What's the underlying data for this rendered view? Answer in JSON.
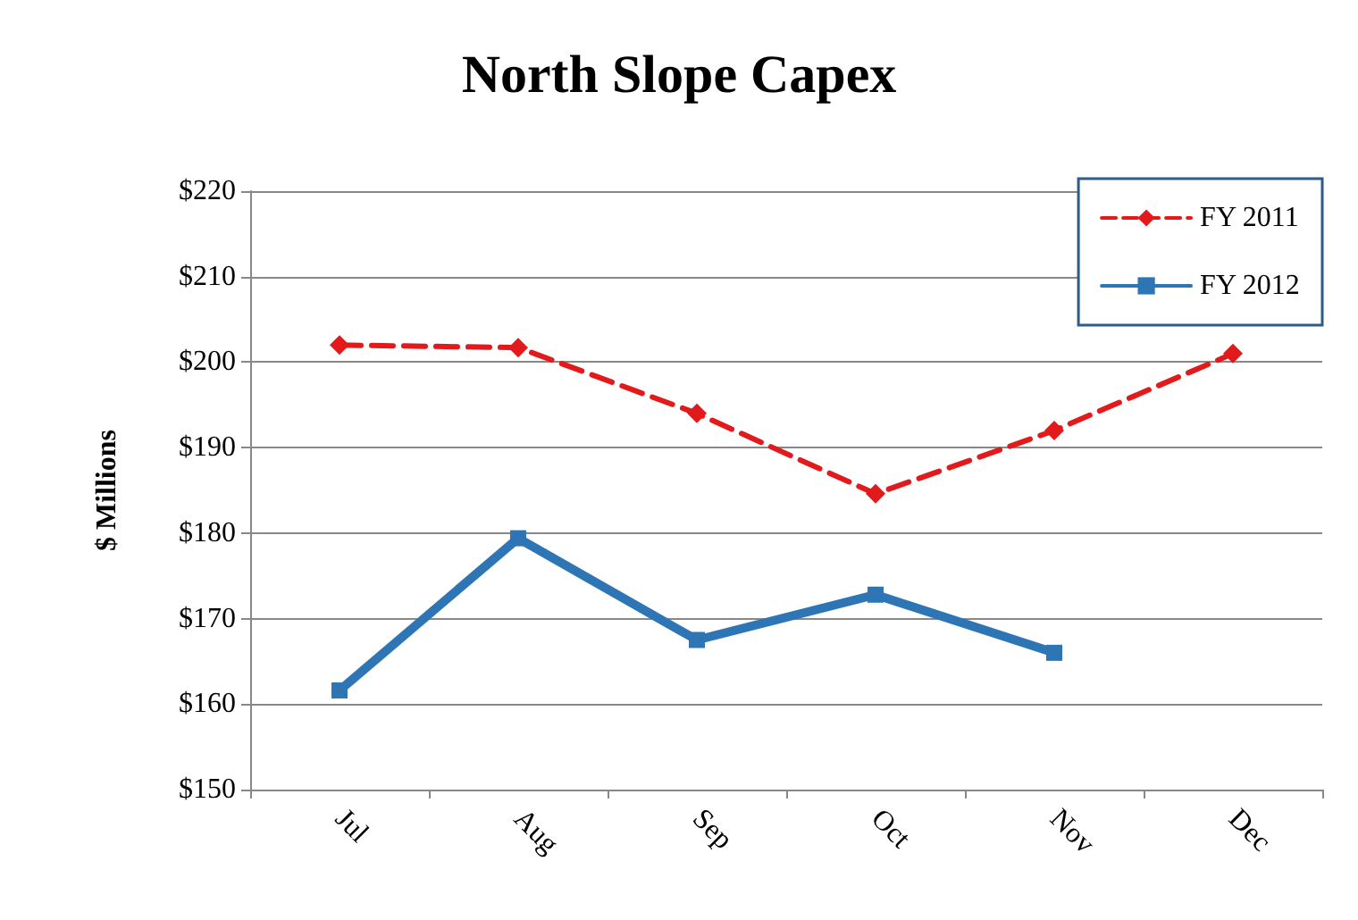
{
  "chart_data": {
    "type": "line",
    "title": "North Slope Capex",
    "ylabel": "$ Millions",
    "categories": [
      "Jul",
      "Aug",
      "Sep",
      "Oct",
      "Nov",
      "Dec"
    ],
    "series": [
      {
        "name": "FY 2011",
        "color": "#e31a1c",
        "values": [
          202,
          201.7,
          194,
          184.6,
          192,
          201
        ],
        "marker": "diamond",
        "line_style": "dashed"
      },
      {
        "name": "FY 2012",
        "color": "#2e75b6",
        "values": [
          161.6,
          179.4,
          167.5,
          172.8,
          166,
          null
        ],
        "marker": "square",
        "line_style": "solid"
      }
    ],
    "ylim": [
      150,
      220
    ],
    "yticks": [
      {
        "value": 150,
        "label": "$150"
      },
      {
        "value": 160,
        "label": "$160"
      },
      {
        "value": 170,
        "label": "$170"
      },
      {
        "value": 180,
        "label": "$180"
      },
      {
        "value": 190,
        "label": "$190"
      },
      {
        "value": 200,
        "label": "$200"
      },
      {
        "value": 210,
        "label": "$210"
      },
      {
        "value": 220,
        "label": "$220"
      }
    ],
    "grid": "y",
    "legend": "top right"
  }
}
